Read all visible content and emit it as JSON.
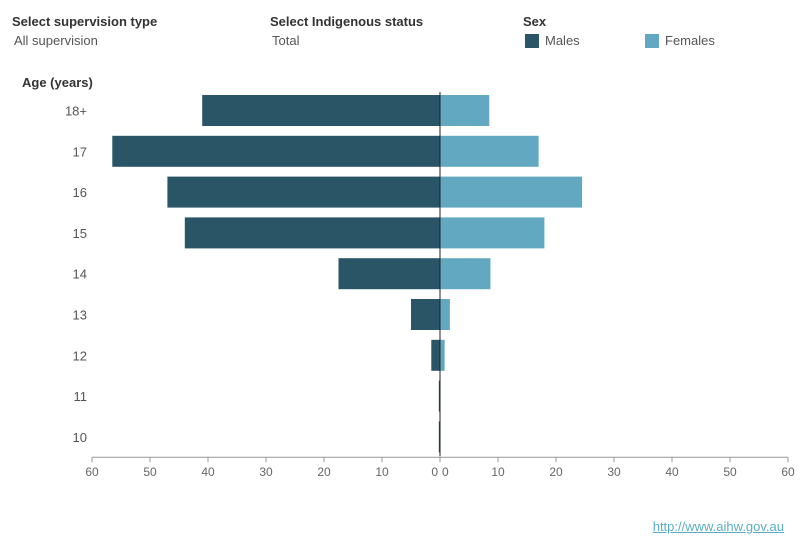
{
  "filters": {
    "supervision": {
      "label": "Select supervision type",
      "value": "All supervision"
    },
    "indigenous": {
      "label": "Select Indigenous status",
      "value": "Total"
    }
  },
  "legend": {
    "title": "Sex",
    "items": [
      {
        "label": "Males",
        "color": "#2a5566"
      },
      {
        "label": "Females",
        "color": "#61a8c0"
      }
    ]
  },
  "footer": {
    "link_text": "http://www.aihw.gov.au"
  },
  "chart_data": {
    "type": "bar",
    "orientation": "horizontal-population-pyramid",
    "ylabel": "Age (years)",
    "categories": [
      "18+",
      "17",
      "16",
      "15",
      "14",
      "13",
      "12",
      "11",
      "10"
    ],
    "series": [
      {
        "name": "Males",
        "color": "#2a5566",
        "values": [
          41,
          56.5,
          47,
          44,
          17.5,
          5,
          1.5,
          0.2,
          0.2
        ]
      },
      {
        "name": "Females",
        "color": "#61a8c0",
        "values": [
          8.5,
          17,
          24.5,
          18,
          8.7,
          1.7,
          0.8,
          0,
          0
        ]
      }
    ],
    "xlim_left": [
      0,
      60
    ],
    "xlim_right": [
      0,
      60
    ],
    "xticks_left": [
      "60",
      "50",
      "40",
      "30",
      "20",
      "10",
      "0"
    ],
    "xticks_right": [
      "0",
      "10",
      "20",
      "30",
      "40",
      "50",
      "60"
    ],
    "grid": false
  }
}
